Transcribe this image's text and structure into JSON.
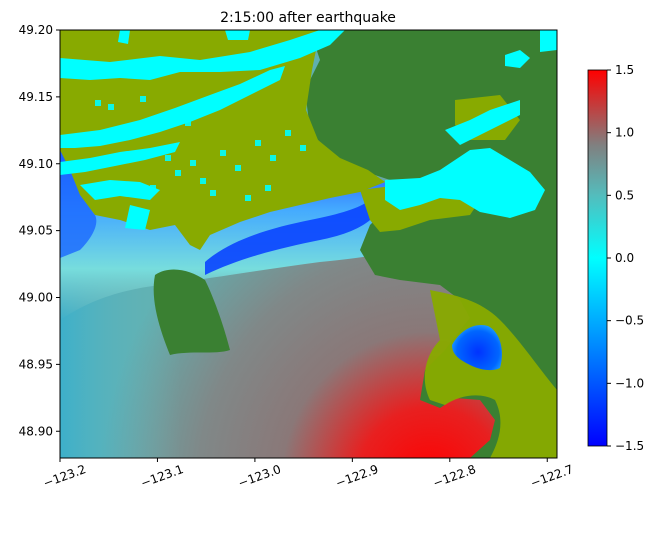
{
  "chart_data": {
    "type": "heatmap",
    "title": "2:15:00 after earthquake",
    "xlabel": "",
    "ylabel": "",
    "xlim": [
      -123.2,
      -122.69
    ],
    "ylim": [
      48.88,
      49.2
    ],
    "x_ticks": [
      -123.2,
      -123.1,
      -123.0,
      -122.9,
      -122.8,
      -122.7
    ],
    "x_tick_labels": [
      "−123.2",
      "−123.1",
      "−123.0",
      "−122.9",
      "−122.8",
      "−122.7"
    ],
    "y_ticks": [
      48.9,
      48.95,
      49.0,
      49.05,
      49.1,
      49.15,
      49.2
    ],
    "y_tick_labels": [
      "48.90",
      "48.95",
      "49.00",
      "49.05",
      "49.10",
      "49.15",
      "49.20"
    ],
    "colorbar": {
      "range": [
        -1.5,
        1.5
      ],
      "ticks": [
        -1.5,
        -1.0,
        -0.5,
        0.0,
        0.5,
        1.0,
        1.5
      ],
      "tick_labels": [
        "−1.5",
        "−1.0",
        "−0.5",
        "0.0",
        "0.5",
        "1.0",
        "1.5"
      ],
      "colormap": [
        {
          "v": -1.5,
          "color": "#0000ff"
        },
        {
          "v": -0.5,
          "color": "#00aaff"
        },
        {
          "v": 0.0,
          "color": "#00ffff"
        },
        {
          "v": 0.5,
          "color": "#55bbbb"
        },
        {
          "v": 0.9,
          "color": "#808080"
        },
        {
          "v": 1.5,
          "color": "#ff0000"
        }
      ]
    },
    "land_colors": {
      "lowland": "#88aa00",
      "upland": "#3a8032",
      "dry_tidal": "#00ffff"
    }
  }
}
